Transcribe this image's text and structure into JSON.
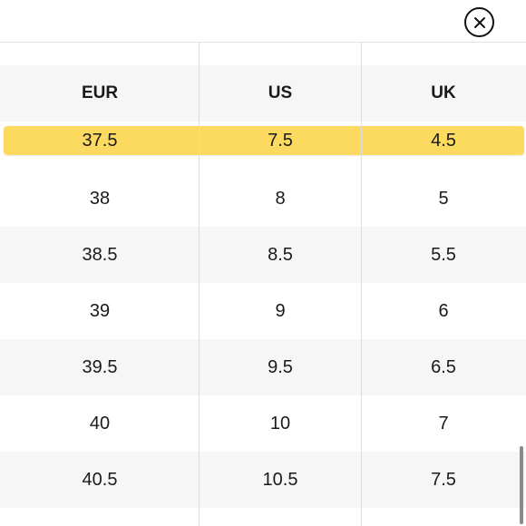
{
  "header": {
    "columns": [
      "EUR",
      "US",
      "UK"
    ]
  },
  "selected_row": {
    "eur": "37.5",
    "us": "7.5",
    "uk": "4.5"
  },
  "rows": [
    {
      "eur": "38",
      "us": "8",
      "uk": "5"
    },
    {
      "eur": "38.5",
      "us": "8.5",
      "uk": "5.5"
    },
    {
      "eur": "39",
      "us": "9",
      "uk": "6"
    },
    {
      "eur": "39.5",
      "us": "9.5",
      "uk": "6.5"
    },
    {
      "eur": "40",
      "us": "10",
      "uk": "7"
    },
    {
      "eur": "40.5",
      "us": "10.5",
      "uk": "7.5"
    }
  ],
  "colors": {
    "highlight": "#fcd95f",
    "alt_row": "#f6f6f6"
  },
  "icons": {
    "close": "close-icon"
  }
}
